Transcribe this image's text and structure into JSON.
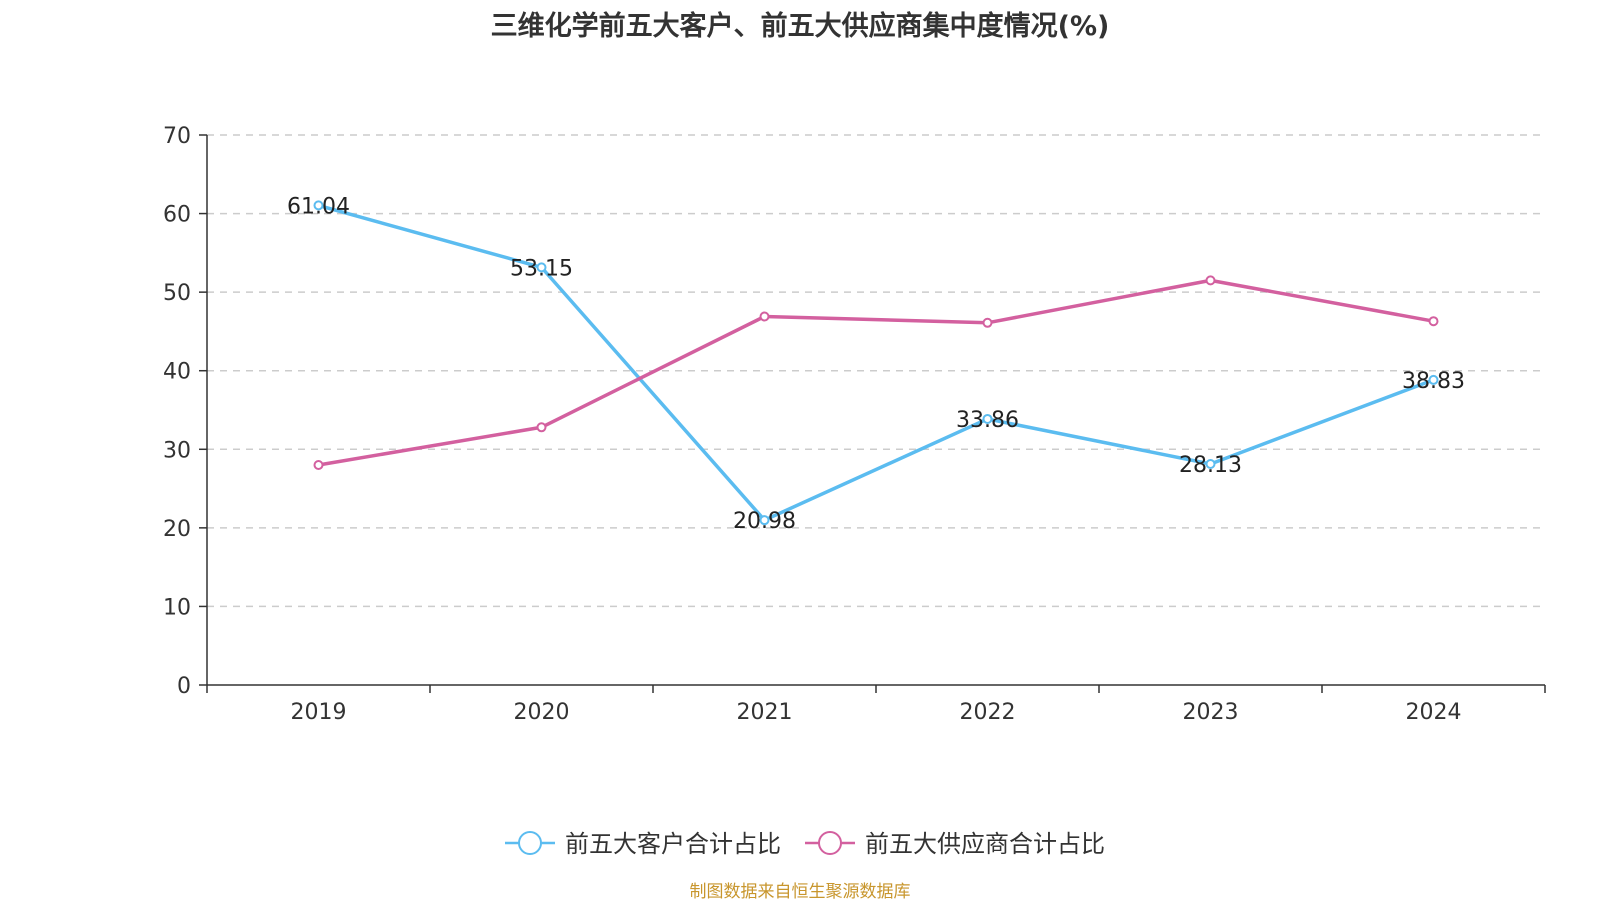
{
  "title": "三维化学前五大客户、前五大供应商集中度情况(%)",
  "source_text": "制图数据来自恒生聚源数据库",
  "colors": {
    "customer": "#5bbcf0",
    "supplier": "#d3609f",
    "axis": "#333333",
    "grid": "#cccccc",
    "source": "#c8962d"
  },
  "chart_data": {
    "type": "line",
    "title": "三维化学前五大客户、前五大供应商集中度情况(%)",
    "categories": [
      "2019",
      "2020",
      "2021",
      "2022",
      "2023",
      "2024"
    ],
    "ylim": [
      0,
      70
    ],
    "yticks": [
      0,
      10,
      20,
      30,
      40,
      50,
      60,
      70
    ],
    "grid": true,
    "legend_position": "bottom-center",
    "series": [
      {
        "name": "前五大客户合计占比",
        "color": "#5bbcf0",
        "values": [
          61.04,
          53.15,
          20.98,
          33.86,
          28.13,
          38.83
        ],
        "labels": [
          "61.04",
          "53.15",
          "20.98",
          "33.86",
          "28.13",
          "38.83"
        ]
      },
      {
        "name": "前五大供应商合计占比",
        "color": "#d3609f",
        "values": [
          28.0,
          32.8,
          46.9,
          46.1,
          51.5,
          46.3
        ],
        "labels": []
      }
    ]
  }
}
